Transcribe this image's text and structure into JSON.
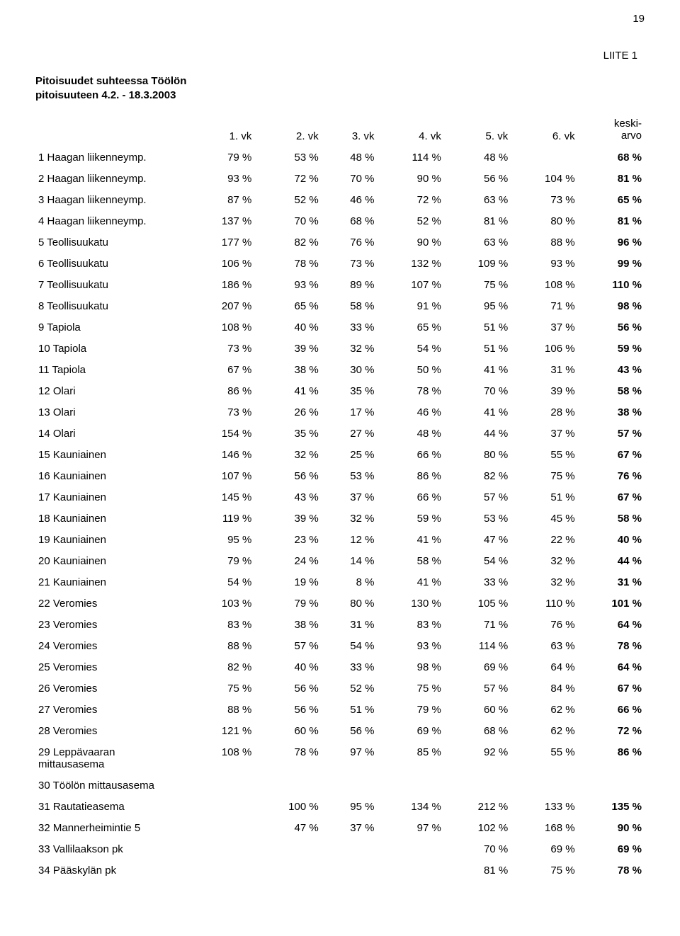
{
  "page_number": "19",
  "appendix_label": "LIITE 1",
  "title_line1": "Pitoisuudet suhteessa Töölön",
  "title_line2": "pitoisuuteen 4.2. - 18.3.2003",
  "headers": {
    "c1": "1. vk",
    "c2": "2. vk",
    "c3": "3. vk",
    "c4": "4. vk",
    "c5": "5. vk",
    "c6": "6. vk",
    "avg_top": "keski-",
    "avg_bottom": "arvo"
  },
  "rows": [
    {
      "label": "1 Haagan liikenneymp.",
      "v": [
        "79 %",
        "53 %",
        "48 %",
        "114 %",
        "48 %",
        ""
      ],
      "avg": "68 %"
    },
    {
      "label": "2 Haagan liikenneymp.",
      "v": [
        "93 %",
        "72 %",
        "70 %",
        "90 %",
        "56 %",
        "104 %"
      ],
      "avg": "81 %"
    },
    {
      "label": "3 Haagan liikenneymp.",
      "v": [
        "87 %",
        "52 %",
        "46 %",
        "72 %",
        "63 %",
        "73 %"
      ],
      "avg": "65 %"
    },
    {
      "label": "4 Haagan liikenneymp.",
      "v": [
        "137 %",
        "70 %",
        "68 %",
        "52 %",
        "81 %",
        "80 %"
      ],
      "avg": "81 %"
    },
    {
      "label": "5 Teollisuukatu",
      "v": [
        "177 %",
        "82 %",
        "76 %",
        "90 %",
        "63 %",
        "88 %"
      ],
      "avg": "96 %"
    },
    {
      "label": "6 Teollisuukatu",
      "v": [
        "106 %",
        "78 %",
        "73 %",
        "132 %",
        "109 %",
        "93 %"
      ],
      "avg": "99 %"
    },
    {
      "label": "7 Teollisuukatu",
      "v": [
        "186 %",
        "93 %",
        "89 %",
        "107 %",
        "75 %",
        "108 %"
      ],
      "avg": "110 %"
    },
    {
      "label": "8 Teollisuukatu",
      "v": [
        "207 %",
        "65 %",
        "58 %",
        "91 %",
        "95 %",
        "71 %"
      ],
      "avg": "98 %"
    },
    {
      "label": "9 Tapiola",
      "v": [
        "108 %",
        "40 %",
        "33 %",
        "65 %",
        "51 %",
        "37 %"
      ],
      "avg": "56 %"
    },
    {
      "label": "10 Tapiola",
      "v": [
        "73 %",
        "39 %",
        "32 %",
        "54 %",
        "51 %",
        "106 %"
      ],
      "avg": "59 %"
    },
    {
      "label": "11 Tapiola",
      "v": [
        "67 %",
        "38 %",
        "30 %",
        "50 %",
        "41 %",
        "31 %"
      ],
      "avg": "43 %"
    },
    {
      "label": "12 Olari",
      "v": [
        "86 %",
        "41 %",
        "35 %",
        "78 %",
        "70 %",
        "39 %"
      ],
      "avg": "58 %"
    },
    {
      "label": "13 Olari",
      "v": [
        "73 %",
        "26 %",
        "17 %",
        "46 %",
        "41 %",
        "28 %"
      ],
      "avg": "38 %"
    },
    {
      "label": "14 Olari",
      "v": [
        "154 %",
        "35 %",
        "27 %",
        "48 %",
        "44 %",
        "37 %"
      ],
      "avg": "57 %"
    },
    {
      "label": "15 Kauniainen",
      "v": [
        "146 %",
        "32 %",
        "25 %",
        "66 %",
        "80 %",
        "55 %"
      ],
      "avg": "67 %"
    },
    {
      "label": "16 Kauniainen",
      "v": [
        "107 %",
        "56 %",
        "53 %",
        "86 %",
        "82 %",
        "75 %"
      ],
      "avg": "76 %"
    },
    {
      "label": "17 Kauniainen",
      "v": [
        "145 %",
        "43 %",
        "37 %",
        "66 %",
        "57 %",
        "51 %"
      ],
      "avg": "67 %"
    },
    {
      "label": "18 Kauniainen",
      "v": [
        "119 %",
        "39 %",
        "32 %",
        "59 %",
        "53 %",
        "45 %"
      ],
      "avg": "58 %"
    },
    {
      "label": "19 Kauniainen",
      "v": [
        "95 %",
        "23 %",
        "12 %",
        "41 %",
        "47 %",
        "22 %"
      ],
      "avg": "40 %"
    },
    {
      "label": "20 Kauniainen",
      "v": [
        "79 %",
        "24 %",
        "14 %",
        "58 %",
        "54 %",
        "32 %"
      ],
      "avg": "44 %"
    },
    {
      "label": "21 Kauniainen",
      "v": [
        "54 %",
        "19 %",
        "8 %",
        "41 %",
        "33 %",
        "32 %"
      ],
      "avg": "31 %"
    },
    {
      "label": "22 Veromies",
      "v": [
        "103 %",
        "79 %",
        "80 %",
        "130 %",
        "105 %",
        "110 %"
      ],
      "avg": "101 %"
    },
    {
      "label": "23 Veromies",
      "v": [
        "83 %",
        "38 %",
        "31 %",
        "83 %",
        "71 %",
        "76 %"
      ],
      "avg": "64 %"
    },
    {
      "label": "24 Veromies",
      "v": [
        "88 %",
        "57 %",
        "54 %",
        "93 %",
        "114 %",
        "63 %"
      ],
      "avg": "78 %"
    },
    {
      "label": "25 Veromies",
      "v": [
        "82 %",
        "40 %",
        "33 %",
        "98 %",
        "69 %",
        "64 %"
      ],
      "avg": "64 %"
    },
    {
      "label": "26 Veromies",
      "v": [
        "75 %",
        "56 %",
        "52 %",
        "75 %",
        "57 %",
        "84 %"
      ],
      "avg": "67 %"
    },
    {
      "label": "27 Veromies",
      "v": [
        "88 %",
        "56 %",
        "51 %",
        "79 %",
        "60 %",
        "62 %"
      ],
      "avg": "66 %"
    },
    {
      "label": "28 Veromies",
      "v": [
        "121 %",
        "60 %",
        "56 %",
        "69 %",
        "68 %",
        "62 %"
      ],
      "avg": "72 %"
    },
    {
      "label": "29 Leppävaaran\nmittausasema",
      "v": [
        "108 %",
        "78 %",
        "97 %",
        "85 %",
        "92 %",
        "55 %"
      ],
      "avg": "86 %"
    },
    {
      "label": "30 Töölön mittausasema",
      "v": [
        "",
        "",
        "",
        "",
        "",
        ""
      ],
      "avg": ""
    },
    {
      "label": "31 Rautatieasema",
      "v": [
        "",
        "100 %",
        "95 %",
        "134 %",
        "212 %",
        "133 %"
      ],
      "avg": "135 %"
    },
    {
      "label": "32 Mannerheimintie 5",
      "v": [
        "",
        "47 %",
        "37 %",
        "97 %",
        "102 %",
        "168 %"
      ],
      "avg": "90 %"
    },
    {
      "label": "33 Vallilaakson pk",
      "v": [
        "",
        "",
        "",
        "",
        "70 %",
        "69 %"
      ],
      "avg": "69 %"
    },
    {
      "label": "34 Pääskylän pk",
      "v": [
        "",
        "",
        "",
        "",
        "81 %",
        "75 %"
      ],
      "avg": "78 %"
    }
  ]
}
